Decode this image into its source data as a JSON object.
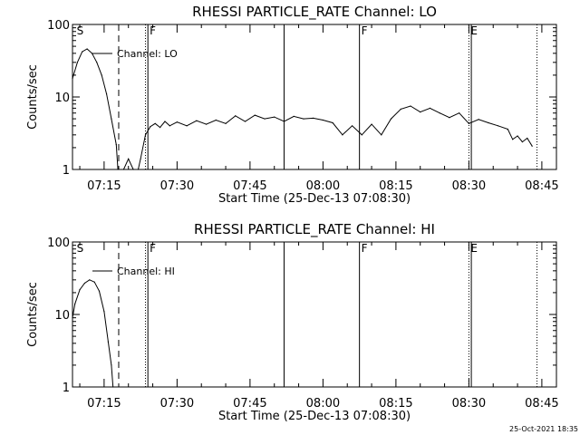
{
  "footer": {
    "timestamp": "25-Oct-2021 18:35"
  },
  "chart_data": [
    {
      "type": "line",
      "title": "RHESSI PARTICLE_RATE Channel: LO",
      "xlabel": "Start Time (25-Dec-13 07:08:30)",
      "ylabel": "Counts/sec",
      "y_scale": "log",
      "ylim": [
        1,
        100
      ],
      "xlim": [
        "07:08:30",
        "08:48:00"
      ],
      "yticks": [
        "1",
        "10",
        "100"
      ],
      "xticks": [
        "07:15",
        "07:30",
        "07:45",
        "08:00",
        "08:15",
        "08:30",
        "08:45"
      ],
      "grid": false,
      "legend_position": "top-left",
      "series": [
        {
          "name": "Channel: LO",
          "color": "#000000",
          "x": [
            "07:08:30",
            "07:09:30",
            "07:10:30",
            "07:11:30",
            "07:12:30",
            "07:13:30",
            "07:14:30",
            "07:15:30",
            "07:16:30",
            "07:17:30",
            "07:17:50",
            "07:19:00",
            "07:20:00",
            "07:21:00",
            "07:22:00",
            "07:22:30",
            "07:23:30",
            "07:24:30",
            "07:25:30",
            "07:26:30",
            "07:27:30",
            "07:28:30",
            "07:30:00",
            "07:32:00",
            "07:34:00",
            "07:36:00",
            "07:38:00",
            "07:40:00",
            "07:42:00",
            "07:44:00",
            "07:46:00",
            "07:48:00",
            "07:50:00",
            "07:52:00",
            "07:54:00",
            "07:56:00",
            "07:58:00",
            "08:00:00",
            "08:02:00",
            "08:04:00",
            "08:06:00",
            "08:08:00",
            "08:10:00",
            "08:12:00",
            "08:14:00",
            "08:16:00",
            "08:18:00",
            "08:20:00",
            "08:22:00",
            "08:24:00",
            "08:26:00",
            "08:28:00",
            "08:30:00",
            "08:32:00",
            "08:34:00",
            "08:36:00",
            "08:38:00",
            "08:39:00",
            "08:40:00",
            "08:41:00",
            "08:42:00",
            "08:43:00"
          ],
          "y": [
            18,
            30,
            42,
            46,
            40,
            30,
            20,
            11,
            5,
            2.2,
            1,
            1,
            1.4,
            1,
            1,
            1.4,
            3,
            3.9,
            4.3,
            3.8,
            4.6,
            4.0,
            4.5,
            4.0,
            4.7,
            4.2,
            4.8,
            4.3,
            5.5,
            4.6,
            5.6,
            5.0,
            5.3,
            4.6,
            5.4,
            5.0,
            5.1,
            4.8,
            4.4,
            3.0,
            4.0,
            3.0,
            4.2,
            3.0,
            5.0,
            6.8,
            7.5,
            6.2,
            7.0,
            6.0,
            5.2,
            6.0,
            4.3,
            4.9,
            4.4,
            4.0,
            3.6,
            2.6,
            2.9,
            2.4,
            2.7,
            2.1
          ]
        }
      ],
      "markers": [
        {
          "label": "S",
          "time": "07:09:00",
          "style": "none"
        },
        {
          "label": "",
          "time": "07:18:00",
          "style": "dashed"
        },
        {
          "label": "",
          "time": "07:23:30",
          "style": "dotted"
        },
        {
          "label": "F",
          "time": "07:24:00",
          "style": "solid"
        },
        {
          "label": "",
          "time": "07:52:00",
          "style": "solid"
        },
        {
          "label": "F",
          "time": "08:07:30",
          "style": "solid"
        },
        {
          "label": "E",
          "time": "08:30:00",
          "style": "dotted"
        },
        {
          "label": "",
          "time": "08:30:30",
          "style": "solid"
        },
        {
          "label": "",
          "time": "08:44:00",
          "style": "dotted"
        }
      ]
    },
    {
      "type": "line",
      "title": "RHESSI PARTICLE_RATE Channel: HI",
      "xlabel": "Start Time (25-Dec-13 07:08:30)",
      "ylabel": "Counts/sec",
      "y_scale": "log",
      "ylim": [
        1,
        100
      ],
      "xlim": [
        "07:08:30",
        "08:48:00"
      ],
      "yticks": [
        "1",
        "10",
        "100"
      ],
      "xticks": [
        "07:15",
        "07:30",
        "07:45",
        "08:00",
        "08:15",
        "08:30",
        "08:45"
      ],
      "grid": false,
      "legend_position": "top-left",
      "series": [
        {
          "name": "Channel: HI",
          "color": "#000000",
          "x": [
            "07:08:30",
            "07:09:00",
            "07:10:00",
            "07:11:00",
            "07:12:00",
            "07:13:00",
            "07:14:00",
            "07:15:00",
            "07:15:50",
            "07:16:30",
            "07:16:50"
          ],
          "y": [
            9,
            14,
            22,
            27,
            30,
            28,
            21,
            11,
            4.2,
            2.0,
            1
          ]
        }
      ],
      "markers": [
        {
          "label": "S",
          "time": "07:09:00",
          "style": "none"
        },
        {
          "label": "",
          "time": "07:18:00",
          "style": "dashed"
        },
        {
          "label": "",
          "time": "07:23:30",
          "style": "dotted"
        },
        {
          "label": "F",
          "time": "07:24:00",
          "style": "solid"
        },
        {
          "label": "",
          "time": "07:52:00",
          "style": "solid"
        },
        {
          "label": "F",
          "time": "08:07:30",
          "style": "solid"
        },
        {
          "label": "E",
          "time": "08:30:00",
          "style": "dotted"
        },
        {
          "label": "",
          "time": "08:30:30",
          "style": "solid"
        },
        {
          "label": "",
          "time": "08:44:00",
          "style": "dotted"
        }
      ]
    }
  ]
}
